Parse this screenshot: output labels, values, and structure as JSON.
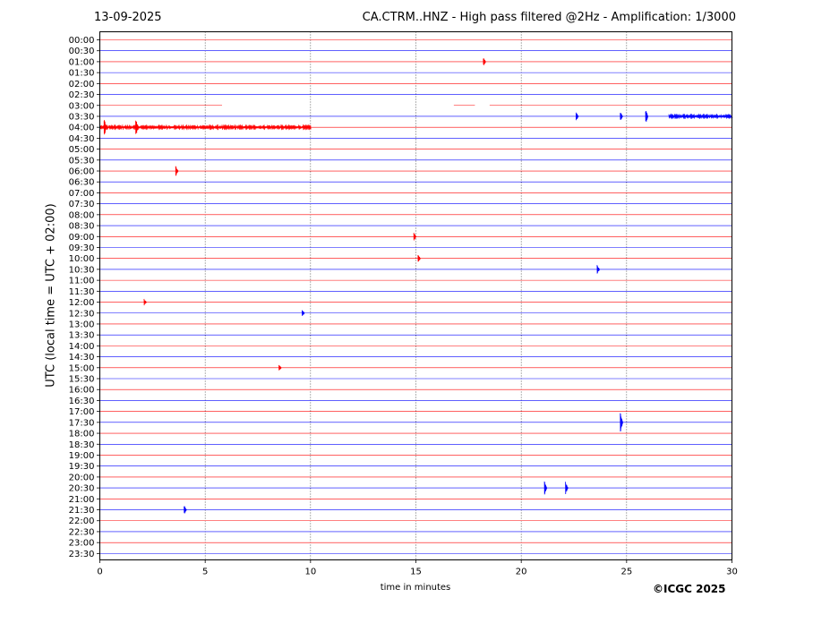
{
  "header": {
    "date": "13-09-2025",
    "title": "CA.CTRM..HNZ - High pass filtered @2Hz - Amplification: 1/3000"
  },
  "copyright": "©ICGC 2025",
  "colors": {
    "trace_a": "#ff0000",
    "trace_b": "#0000ff",
    "axis": "#000000",
    "grid": "#000000"
  },
  "chart_data": {
    "type": "line",
    "title": "CA.CTRM..HNZ - High pass filtered @2Hz - Amplification: 1/3000",
    "xlabel": "time in minutes",
    "ylabel": "UTC (local time = UTC + 02:00)",
    "xlim": [
      0,
      30
    ],
    "x_ticks": [
      "0",
      "5",
      "10",
      "15",
      "20",
      "25",
      "30"
    ],
    "grid": "vertical dotted lines at 5, 10, 15, 20, 25",
    "rows": [
      "00:00",
      "00:30",
      "01:00",
      "01:30",
      "02:00",
      "02:30",
      "03:00",
      "03:30",
      "04:00",
      "04:30",
      "05:00",
      "05:30",
      "06:00",
      "06:30",
      "07:00",
      "07:30",
      "08:00",
      "08:30",
      "09:00",
      "09:30",
      "10:00",
      "10:30",
      "11:00",
      "11:30",
      "12:00",
      "12:30",
      "13:00",
      "13:30",
      "14:00",
      "14:30",
      "15:00",
      "15:30",
      "16:00",
      "16:30",
      "17:00",
      "17:30",
      "18:00",
      "18:30",
      "19:00",
      "19:30",
      "20:00",
      "20:30",
      "21:00",
      "21:30",
      "22:00",
      "22:30",
      "23:00",
      "23:30"
    ],
    "row_colors": "alternating red (full hour) and blue (half hour)",
    "events": [
      {
        "row": "01:00",
        "minute": 18.2,
        "amplitude": 0.4
      },
      {
        "row": "03:30",
        "minute": 22.6,
        "amplitude": 0.4
      },
      {
        "row": "03:30",
        "minute": 24.7,
        "amplitude": 0.4
      },
      {
        "row": "03:30",
        "minute": 25.9,
        "amplitude": 0.7
      },
      {
        "row": "04:00",
        "minute": 0.2,
        "amplitude": 0.9
      },
      {
        "row": "04:00",
        "minute": 1.7,
        "amplitude": 0.9
      },
      {
        "row": "06:00",
        "minute": 3.6,
        "amplitude": 0.5
      },
      {
        "row": "09:00",
        "minute": 14.9,
        "amplitude": 0.4
      },
      {
        "row": "10:00",
        "minute": 15.1,
        "amplitude": 0.4
      },
      {
        "row": "10:30",
        "minute": 23.6,
        "amplitude": 0.4
      },
      {
        "row": "12:00",
        "minute": 2.1,
        "amplitude": 0.3
      },
      {
        "row": "12:30",
        "minute": 9.6,
        "amplitude": 0.3
      },
      {
        "row": "15:00",
        "minute": 8.5,
        "amplitude": 0.3
      },
      {
        "row": "17:30",
        "minute": 24.7,
        "amplitude": 0.9
      },
      {
        "row": "20:30",
        "minute": 21.1,
        "amplitude": 0.6
      },
      {
        "row": "20:30",
        "minute": 22.1,
        "amplitude": 0.6
      },
      {
        "row": "21:30",
        "minute": 4.0,
        "amplitude": 0.4
      }
    ],
    "noisy_segments": [
      {
        "row": "03:30",
        "from": 27.0,
        "to": 30.0
      },
      {
        "row": "04:00",
        "from": 0.0,
        "to": 10.0
      }
    ],
    "data_gaps": [
      {
        "row": "03:00",
        "from": 5.8,
        "to": 16.8
      },
      {
        "row": "03:00",
        "from": 17.8,
        "to": 18.5
      }
    ]
  }
}
